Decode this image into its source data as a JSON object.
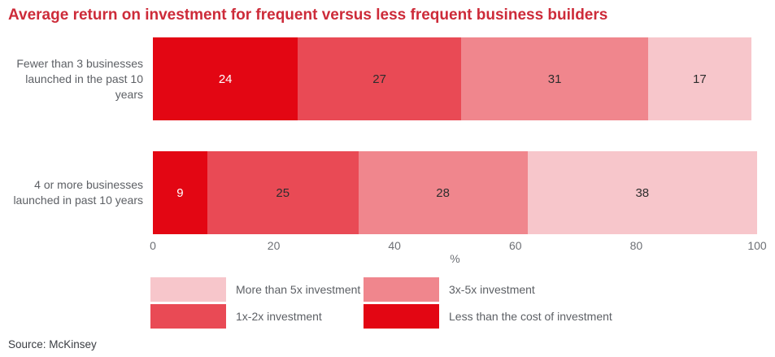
{
  "header": {
    "title": "Average return on investment for frequent versus less frequent business builders"
  },
  "source": {
    "text": "Source: McKinsey"
  },
  "colors": {
    "title_red": "#cd2b39",
    "bright_red": "#e30613",
    "medium_red": "#e94a55",
    "salmon": "#f0868d",
    "light_pink": "#f7c6cb",
    "axis_text": "#6d7075",
    "category_text": "#5d6065",
    "source_text": "#3a3d42"
  },
  "chart_data": {
    "type": "bar",
    "orientation": "horizontal-stacked",
    "title": "Average return on investment for frequent versus less frequent business builders",
    "categories": [
      "Fewer than 3 businesses\nlaunched in the past 10 years",
      "4 or more businesses\nlaunched in past 10 years"
    ],
    "series": [
      {
        "name": "Less than the cost of investment",
        "color": "#e30613",
        "label_color": "#ffffff",
        "values": [
          24,
          9
        ]
      },
      {
        "name": "1x-2x investment",
        "color": "#e94a55",
        "label_color": "#2d2d2d",
        "values": [
          27,
          25
        ]
      },
      {
        "name": "3x-5x investment",
        "color": "#f0868d",
        "label_color": "#2d2d2d",
        "values": [
          31,
          28
        ]
      },
      {
        "name": "More than 5x investment",
        "color": "#f7c6cb",
        "label_color": "#2d2d2d",
        "values": [
          17,
          38
        ]
      }
    ],
    "xlim": [
      0,
      100
    ],
    "x_ticks": [
      0,
      20,
      40,
      60,
      80,
      100
    ],
    "xlabel": "%",
    "ylabel": "",
    "grid": false,
    "legend_position": "bottom"
  },
  "legend": {
    "items": [
      {
        "label": "More than 5x investment",
        "color": "#f7c6cb"
      },
      {
        "label": "3x-5x investment",
        "color": "#f0868d"
      },
      {
        "label": "1x-2x investment",
        "color": "#e94a55"
      },
      {
        "label": "Less than the cost of investment",
        "color": "#e30613"
      }
    ]
  }
}
